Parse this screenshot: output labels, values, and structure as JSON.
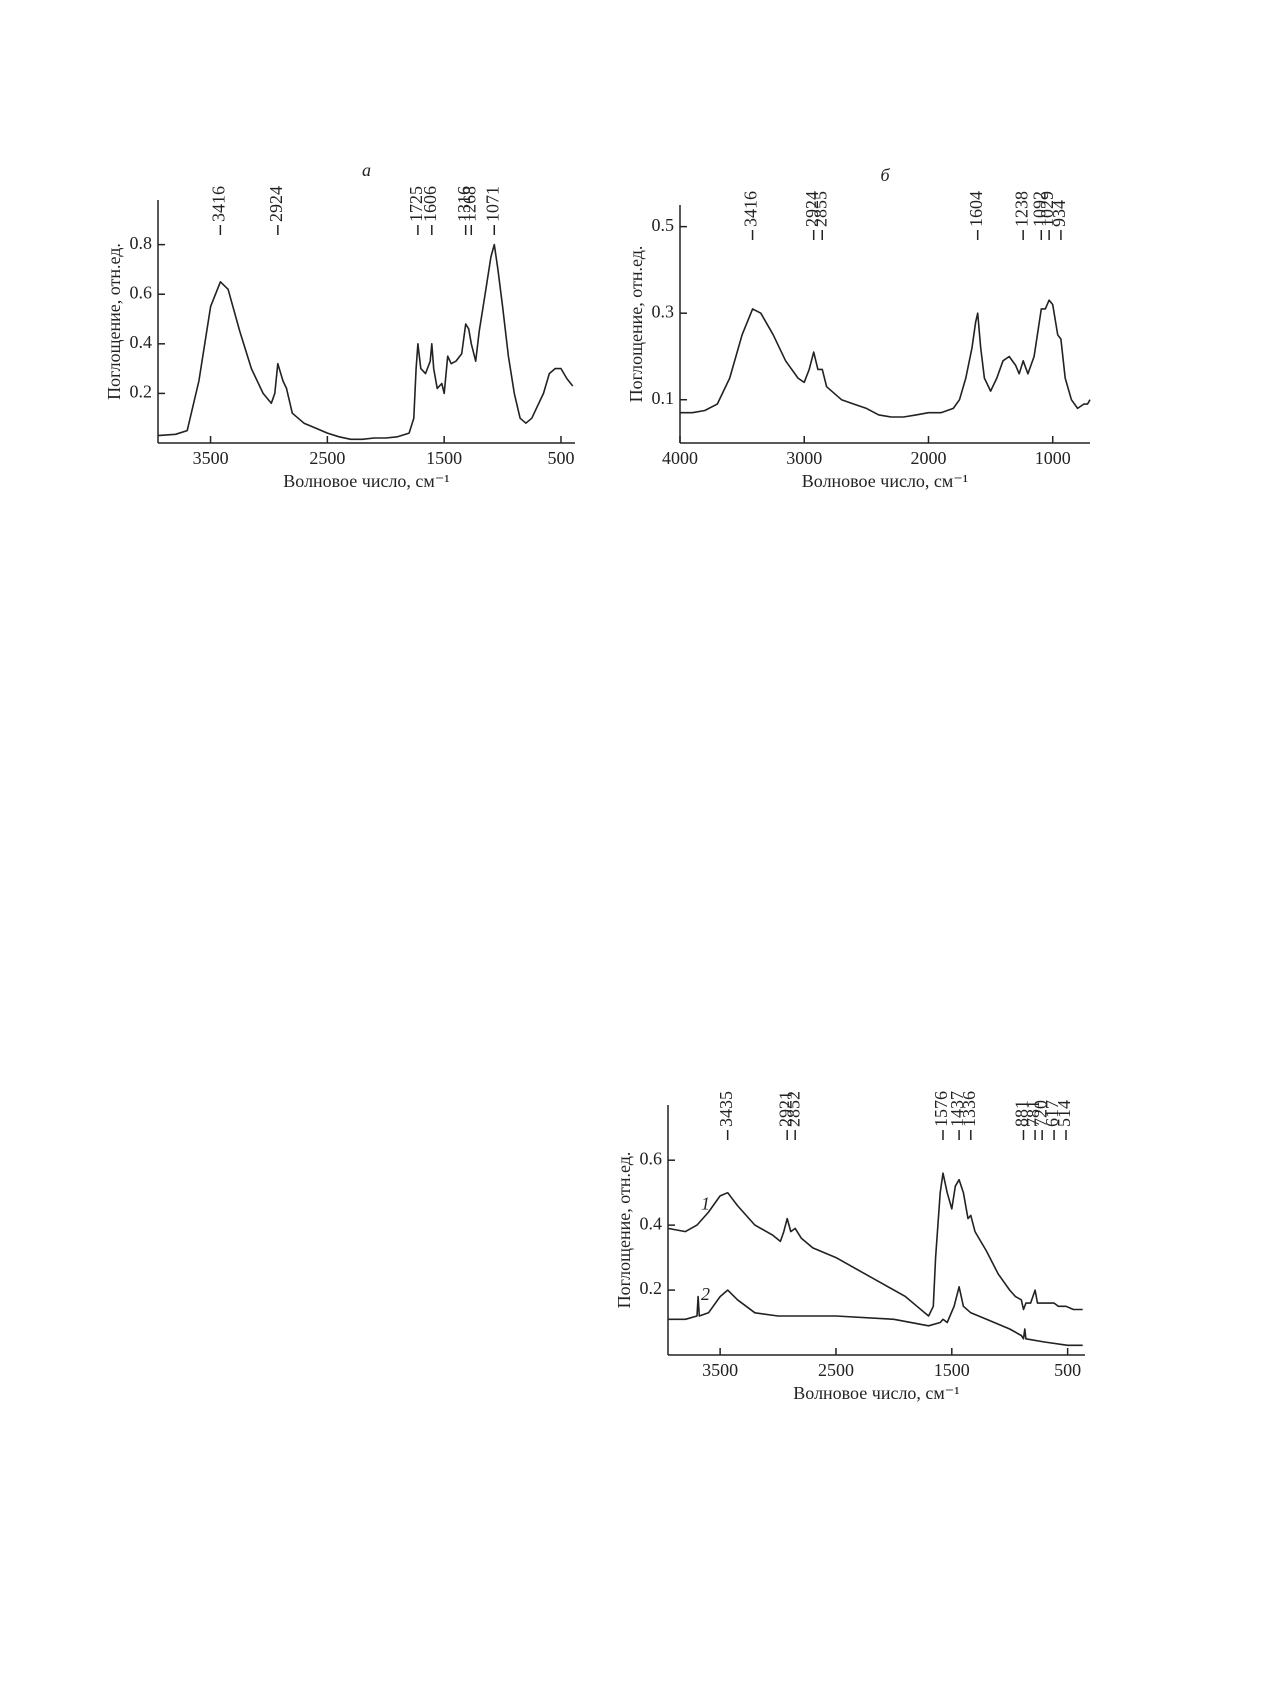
{
  "chart_data": [
    {
      "type": "line",
      "title": "а",
      "xlabel": "Волновое число, см⁻¹",
      "ylabel": "Поглощение, отн.ед.",
      "color": "#222222",
      "xlim": [
        3950,
        380
      ],
      "ylim": [
        0,
        0.98
      ],
      "xticks": [
        3500,
        2500,
        1500,
        500
      ],
      "yticks": [
        0.2,
        0.4,
        0.6,
        0.8
      ],
      "peaks": [
        3416,
        2924,
        1725,
        1606,
        1316,
        1268,
        1071
      ],
      "series": [
        {
          "x": [
            3950,
            3800,
            3700,
            3600,
            3500,
            3416,
            3350,
            3250,
            3150,
            3050,
            2980,
            2950,
            2924,
            2880,
            2850,
            2800,
            2700,
            2600,
            2500,
            2400,
            2300,
            2200,
            2100,
            2000,
            1900,
            1800,
            1760,
            1740,
            1725,
            1700,
            1660,
            1620,
            1606,
            1590,
            1560,
            1520,
            1500,
            1470,
            1440,
            1400,
            1350,
            1316,
            1290,
            1268,
            1230,
            1200,
            1150,
            1100,
            1071,
            1040,
            1000,
            950,
            900,
            850,
            800,
            750,
            700,
            650,
            600,
            550,
            500,
            450,
            400
          ],
          "values": [
            0.03,
            0.035,
            0.05,
            0.25,
            0.55,
            0.65,
            0.62,
            0.45,
            0.3,
            0.2,
            0.16,
            0.2,
            0.32,
            0.25,
            0.22,
            0.12,
            0.08,
            0.06,
            0.04,
            0.025,
            0.015,
            0.015,
            0.02,
            0.02,
            0.025,
            0.04,
            0.1,
            0.3,
            0.4,
            0.3,
            0.28,
            0.33,
            0.4,
            0.3,
            0.22,
            0.24,
            0.2,
            0.35,
            0.32,
            0.33,
            0.36,
            0.48,
            0.46,
            0.4,
            0.33,
            0.45,
            0.6,
            0.75,
            0.8,
            0.7,
            0.55,
            0.35,
            0.2,
            0.1,
            0.08,
            0.1,
            0.15,
            0.2,
            0.28,
            0.3,
            0.3,
            0.26,
            0.23
          ]
        }
      ]
    },
    {
      "type": "line",
      "title": "б",
      "xlabel": "Волновое число, см⁻¹",
      "ylabel": "Поглощение, отн.ед.",
      "color": "#222222",
      "xlim": [
        4000,
        700
      ],
      "ylim": [
        0,
        0.55
      ],
      "xticks": [
        4000,
        3000,
        2000,
        1000
      ],
      "yticks": [
        0.1,
        0.3,
        0.5
      ],
      "peaks": [
        3416,
        2924,
        2855,
        1604,
        1238,
        1092,
        1029,
        934
      ],
      "series": [
        {
          "x": [
            4000,
            3900,
            3800,
            3700,
            3600,
            3500,
            3416,
            3350,
            3250,
            3150,
            3050,
            3000,
            2960,
            2924,
            2890,
            2855,
            2820,
            2700,
            2600,
            2500,
            2400,
            2300,
            2200,
            2100,
            2000,
            1900,
            1800,
            1750,
            1700,
            1650,
            1620,
            1604,
            1580,
            1550,
            1500,
            1450,
            1400,
            1350,
            1300,
            1270,
            1238,
            1200,
            1150,
            1092,
            1060,
            1029,
            1000,
            960,
            934,
            900,
            850,
            800,
            750,
            720,
            700
          ],
          "values": [
            0.07,
            0.07,
            0.075,
            0.09,
            0.15,
            0.25,
            0.31,
            0.3,
            0.25,
            0.19,
            0.15,
            0.14,
            0.17,
            0.21,
            0.17,
            0.17,
            0.13,
            0.1,
            0.09,
            0.08,
            0.065,
            0.06,
            0.06,
            0.065,
            0.07,
            0.07,
            0.08,
            0.1,
            0.15,
            0.22,
            0.28,
            0.3,
            0.22,
            0.15,
            0.12,
            0.15,
            0.19,
            0.2,
            0.18,
            0.16,
            0.19,
            0.16,
            0.2,
            0.31,
            0.31,
            0.33,
            0.32,
            0.25,
            0.24,
            0.15,
            0.1,
            0.08,
            0.09,
            0.09,
            0.1
          ]
        }
      ]
    },
    {
      "type": "line",
      "xlabel": "Волновое число, см⁻¹",
      "ylabel": "Поглощение, отн.ед.",
      "color": "#222222",
      "xlim": [
        3950,
        350
      ],
      "ylim": [
        0,
        0.77
      ],
      "xticks": [
        3500,
        2500,
        1500,
        500
      ],
      "yticks": [
        0.2,
        0.4,
        0.6
      ],
      "peaks": [
        3435,
        2921,
        2852,
        1576,
        1437,
        1336,
        881,
        781,
        720,
        617,
        514
      ],
      "series": [
        {
          "name": "1",
          "x": [
            3950,
            3800,
            3700,
            3600,
            3500,
            3435,
            3350,
            3200,
            3050,
            2980,
            2950,
            2921,
            2890,
            2852,
            2800,
            2700,
            2500,
            2300,
            2100,
            1900,
            1800,
            1700,
            1660,
            1640,
            1600,
            1576,
            1540,
            1500,
            1470,
            1437,
            1400,
            1360,
            1336,
            1300,
            1200,
            1100,
            1000,
            950,
            900,
            881,
            860,
            820,
            781,
            760,
            720,
            617,
            580,
            514,
            450,
            370
          ],
          "values": [
            0.39,
            0.38,
            0.4,
            0.44,
            0.49,
            0.5,
            0.46,
            0.4,
            0.37,
            0.35,
            0.38,
            0.42,
            0.38,
            0.39,
            0.36,
            0.33,
            0.3,
            0.26,
            0.22,
            0.18,
            0.15,
            0.12,
            0.15,
            0.3,
            0.5,
            0.56,
            0.5,
            0.45,
            0.52,
            0.54,
            0.5,
            0.42,
            0.43,
            0.38,
            0.32,
            0.25,
            0.2,
            0.18,
            0.17,
            0.14,
            0.16,
            0.16,
            0.2,
            0.16,
            0.16,
            0.16,
            0.15,
            0.15,
            0.14,
            0.14
          ]
        },
        {
          "name": "2",
          "x": [
            3950,
            3800,
            3700,
            3690,
            3680,
            3600,
            3500,
            3435,
            3350,
            3200,
            3000,
            2500,
            2000,
            1700,
            1600,
            1576,
            1540,
            1480,
            1437,
            1400,
            1336,
            1200,
            1000,
            900,
            881,
            870,
            860,
            700,
            500,
            370
          ],
          "values": [
            0.11,
            0.11,
            0.12,
            0.18,
            0.12,
            0.13,
            0.18,
            0.2,
            0.17,
            0.13,
            0.12,
            0.12,
            0.11,
            0.09,
            0.1,
            0.11,
            0.1,
            0.15,
            0.21,
            0.15,
            0.13,
            0.11,
            0.08,
            0.06,
            0.05,
            0.08,
            0.05,
            0.04,
            0.03,
            0.03
          ]
        }
      ]
    }
  ]
}
